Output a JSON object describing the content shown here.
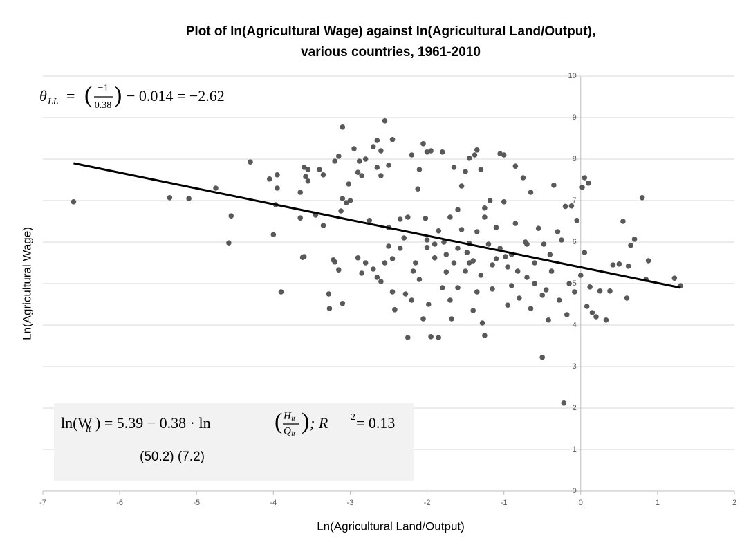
{
  "chart_data": {
    "type": "scatter",
    "title": [
      "Plot of ln(Agricultural Wage) against ln(Agricultural Land/Output),",
      "various countries, 1961-2010"
    ],
    "x_label": "Ln(Agricultural Land/Output)",
    "y_label": "Ln(Agricultural Wage)",
    "xlim": [
      -7,
      2
    ],
    "xticks": [
      -7,
      -6,
      -5,
      -4,
      -3,
      -2,
      -1,
      0,
      1,
      2
    ],
    "ylim": [
      0,
      10
    ],
    "yticks": [
      0,
      1,
      2,
      3,
      4,
      5,
      6,
      7,
      8,
      9,
      10
    ],
    "grid": true,
    "series": [
      {
        "color": "#595959",
        "x": [
          -6.6,
          -5.35,
          -5.1,
          -4.75,
          -4.55,
          -4.58,
          -4.3,
          -4.05,
          -3.95,
          -3.95,
          -3.97,
          -4.0,
          -3.9,
          -3.6,
          -3.62,
          -3.65,
          -3.6,
          -3.58,
          -3.55,
          -3.55,
          -3.65,
          -3.4,
          -3.35,
          -3.45,
          -3.35,
          -3.2,
          -3.15,
          -3.1,
          -3.28,
          -3.27,
          -3.22,
          -3.2,
          -3.15,
          -3.1,
          -3.12,
          -3.1,
          -3.05,
          -3.0,
          -3.02,
          -2.95,
          -2.88,
          -2.9,
          -2.85,
          -2.8,
          -2.7,
          -2.65,
          -2.65,
          -2.6,
          -2.55,
          -2.45,
          -2.5,
          -2.6,
          -2.9,
          -2.85,
          -2.8,
          -2.75,
          -2.7,
          -2.65,
          -2.6,
          -2.55,
          -2.5,
          -2.45,
          -2.5,
          -2.42,
          -2.45,
          -2.35,
          -2.3,
          -2.25,
          -2.25,
          -2.28,
          -2.2,
          -2.18,
          -2.15,
          -2.12,
          -2.1,
          -2.05,
          -2.0,
          -1.95,
          -2.02,
          -2.0,
          -1.98,
          -1.95,
          -1.85,
          -1.9,
          -1.85,
          -1.8,
          -1.78,
          -1.75,
          -1.7,
          -1.68,
          -1.65,
          -1.6,
          -1.55,
          -1.5,
          -1.48,
          -1.45,
          -1.4,
          -1.38,
          -1.35,
          -1.35,
          -1.3,
          -1.28,
          -1.25,
          -1.25,
          -1.2,
          -1.18,
          -1.15,
          -1.1,
          -1.05,
          -1.0,
          -1.0,
          -0.98,
          -0.95,
          -0.9,
          -0.85,
          -0.82,
          -0.8,
          -0.75,
          -0.72,
          -0.7,
          -0.65,
          -0.65,
          -0.6,
          -0.55,
          -0.5,
          -0.48,
          -0.45,
          -0.42,
          -0.38,
          -0.35,
          -0.3,
          -0.28,
          -0.25,
          -0.22,
          -0.2,
          -0.18,
          -0.15,
          -0.12,
          -0.08,
          -0.05,
          0.0,
          0.02,
          0.05,
          0.05,
          0.08,
          0.1,
          0.12,
          0.15,
          0.2,
          0.25,
          0.33,
          0.38,
          0.42,
          0.5,
          0.55,
          0.6,
          0.62,
          0.65,
          0.7,
          0.8,
          0.85,
          0.88,
          1.22,
          1.3,
          -1.9,
          -1.75,
          -1.6,
          -1.5,
          -1.45,
          -1.35,
          -1.15,
          -1.05,
          -0.95,
          -0.85,
          -0.7,
          -0.6,
          -0.5,
          -0.4,
          -2.1,
          -2.05,
          -1.8,
          -1.7,
          -1.55,
          -1.25,
          -1.1,
          -0.9,
          -2.35,
          -2.0,
          -1.6,
          -1.4,
          -1.3,
          -2.2,
          -1.65,
          -1.45
        ],
        "y": [
          6.97,
          7.07,
          7.05,
          7.3,
          6.63,
          5.98,
          7.93,
          7.52,
          7.62,
          7.3,
          6.9,
          6.18,
          4.8,
          5.65,
          5.63,
          6.58,
          7.8,
          7.58,
          7.75,
          7.47,
          7.2,
          7.75,
          7.62,
          6.65,
          6.4,
          7.95,
          8.07,
          8.77,
          4.75,
          4.4,
          5.57,
          5.52,
          5.33,
          4.52,
          6.75,
          7.05,
          6.95,
          7.0,
          7.4,
          8.25,
          7.95,
          7.68,
          7.6,
          8.0,
          8.3,
          8.45,
          7.8,
          8.2,
          8.92,
          8.47,
          7.85,
          7.6,
          5.62,
          5.25,
          5.5,
          6.52,
          5.35,
          5.15,
          5.05,
          5.5,
          5.9,
          5.6,
          6.35,
          4.37,
          4.8,
          5.85,
          6.1,
          6.6,
          3.7,
          4.75,
          4.6,
          5.3,
          5.5,
          7.28,
          7.75,
          8.37,
          8.17,
          8.2,
          6.57,
          5.87,
          4.5,
          3.72,
          3.7,
          5.62,
          6.27,
          8.17,
          6.0,
          5.28,
          4.6,
          4.15,
          5.5,
          6.78,
          7.35,
          7.7,
          5.75,
          5.5,
          4.35,
          8.1,
          8.22,
          6.25,
          5.2,
          4.05,
          3.75,
          6.82,
          5.95,
          7.0,
          4.87,
          5.6,
          8.13,
          8.1,
          6.97,
          5.65,
          4.48,
          4.95,
          7.83,
          5.3,
          4.65,
          7.55,
          6.0,
          5.15,
          7.2,
          4.4,
          5.5,
          6.33,
          3.22,
          5.95,
          4.85,
          4.12,
          5.3,
          7.37,
          6.25,
          4.6,
          6.05,
          2.12,
          6.86,
          4.25,
          5.0,
          6.87,
          4.8,
          6.52,
          5.2,
          7.32,
          7.55,
          5.75,
          4.45,
          7.42,
          4.92,
          4.3,
          4.2,
          4.82,
          4.12,
          4.82,
          5.45,
          5.47,
          6.5,
          4.65,
          5.42,
          5.92,
          6.07,
          7.07,
          5.1,
          5.55,
          5.13,
          4.95,
          5.95,
          5.7,
          5.85,
          5.3,
          5.97,
          4.8,
          5.45,
          5.85,
          5.4,
          6.45,
          5.95,
          5.0,
          4.72,
          5.7,
          5.1,
          4.15,
          4.9,
          6.6,
          6.3,
          6.6,
          6.35,
          5.7,
          6.55,
          6.05,
          4.9,
          5.55,
          7.75,
          8.1,
          7.8,
          8.02
        ]
      }
    ],
    "trendline": {
      "color": "#000000",
      "x": [
        -6.6,
        1.3
      ],
      "y": [
        7.9,
        4.9
      ]
    },
    "annotations": {
      "theta": {
        "symbol": "θ",
        "subscript": "LL",
        "equals": "=",
        "open": "(",
        "numerator": "−1",
        "denominator": "0.38",
        "close": ")",
        "rest": "− 0.014 = −2.62"
      },
      "regression": {
        "lhs": "ln(W",
        "lhs_sub": "it",
        "mid": ") =  5.39  − 0.38 · ln",
        "open": "(",
        "num": "H",
        "num_sub": "it",
        "den": "Q",
        "den_sub": "it",
        "close": ")",
        "tail": ";   R",
        "sup": "2",
        "r2": " = 0.13",
        "stats": "(50.2)    (7.2)"
      }
    }
  }
}
